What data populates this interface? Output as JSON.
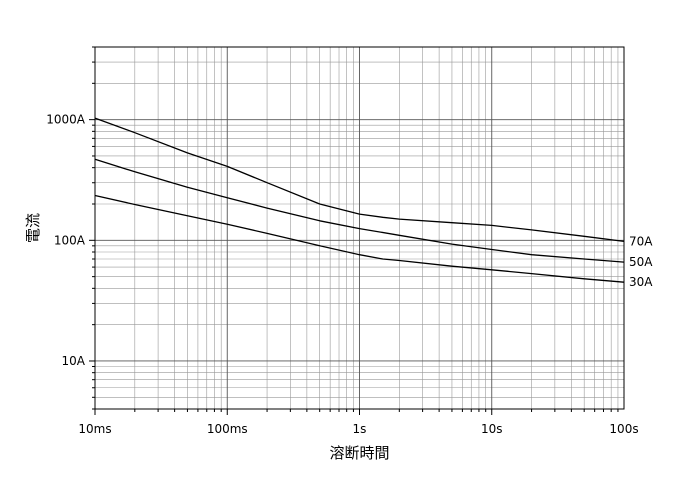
{
  "chart_data": {
    "type": "line",
    "xlabel": "溶断時間",
    "ylabel": "電流",
    "x_scale": "log",
    "y_scale": "log",
    "xlim": [
      0.01,
      100
    ],
    "ylim": [
      4,
      4000
    ],
    "grid": true,
    "x_ticks": [
      {
        "value": 0.01,
        "label": "10ms"
      },
      {
        "value": 0.1,
        "label": "100ms"
      },
      {
        "value": 1,
        "label": "1s"
      },
      {
        "value": 10,
        "label": "10s"
      },
      {
        "value": 100,
        "label": "100s"
      }
    ],
    "y_ticks": [
      {
        "value": 10,
        "label": "10A"
      },
      {
        "value": 100,
        "label": "100A"
      },
      {
        "value": 1000,
        "label": "1000A"
      }
    ],
    "series": [
      {
        "name": "70A",
        "x": [
          0.01,
          0.02,
          0.05,
          0.1,
          0.2,
          0.5,
          1,
          1.5,
          2,
          5,
          10,
          20,
          50,
          100
        ],
        "y": [
          1030,
          780,
          530,
          410,
          300,
          200,
          165,
          155,
          150,
          140,
          133,
          122,
          108,
          98
        ]
      },
      {
        "name": "50A",
        "x": [
          0.01,
          0.02,
          0.05,
          0.1,
          0.2,
          0.5,
          1,
          2,
          5,
          10,
          20,
          50,
          100
        ],
        "y": [
          470,
          370,
          275,
          225,
          185,
          145,
          125,
          110,
          93,
          84,
          76,
          70,
          66
        ]
      },
      {
        "name": "30A",
        "x": [
          0.01,
          0.02,
          0.05,
          0.1,
          0.2,
          0.5,
          1,
          1.5,
          2,
          5,
          10,
          20,
          50,
          100
        ],
        "y": [
          235,
          198,
          160,
          136,
          114,
          90,
          76,
          70,
          68,
          61,
          57,
          53,
          48,
          45
        ]
      }
    ]
  }
}
